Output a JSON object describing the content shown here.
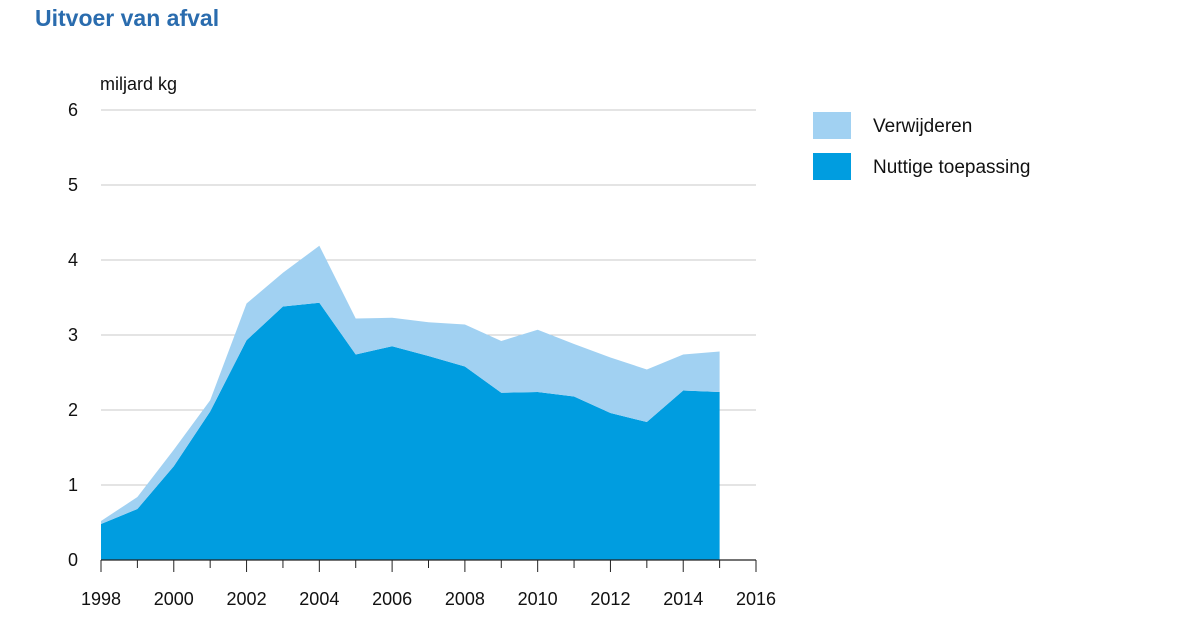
{
  "chart_data": {
    "type": "area",
    "stacked": true,
    "title": "Uitvoer van afval",
    "ylabel": "miljard kg",
    "xlabel": "",
    "x": [
      1998,
      1999,
      2000,
      2001,
      2002,
      2003,
      2004,
      2005,
      2006,
      2007,
      2008,
      2009,
      2010,
      2011,
      2012,
      2013,
      2014,
      2015
    ],
    "xlim": [
      1998,
      2016
    ],
    "ylim": [
      0,
      6
    ],
    "xticks": [
      "1998",
      "2000",
      "2002",
      "2004",
      "2006",
      "2008",
      "2010",
      "2012",
      "2014",
      "2016"
    ],
    "yticks": [
      "0",
      "1",
      "2",
      "3",
      "4",
      "5",
      "6"
    ],
    "grid": "horizontal",
    "legend_position": "right",
    "series": [
      {
        "name": "Nuttige toepassing",
        "color": "#009de0",
        "values": [
          0.48,
          0.68,
          1.25,
          1.98,
          2.93,
          3.38,
          3.43,
          2.74,
          2.85,
          2.72,
          2.58,
          2.23,
          2.24,
          2.18,
          1.96,
          1.84,
          2.26,
          2.24
        ]
      },
      {
        "name": "Verwijderen",
        "color": "#a1d1f2",
        "values": [
          0.04,
          0.16,
          0.22,
          0.15,
          0.49,
          0.45,
          0.76,
          0.48,
          0.38,
          0.45,
          0.56,
          0.69,
          0.83,
          0.7,
          0.74,
          0.7,
          0.48,
          0.54
        ]
      }
    ],
    "legend": [
      {
        "label": "Verwijderen",
        "color": "#a1d1f2"
      },
      {
        "label": "Nuttige toepassing",
        "color": "#009de0"
      }
    ]
  }
}
